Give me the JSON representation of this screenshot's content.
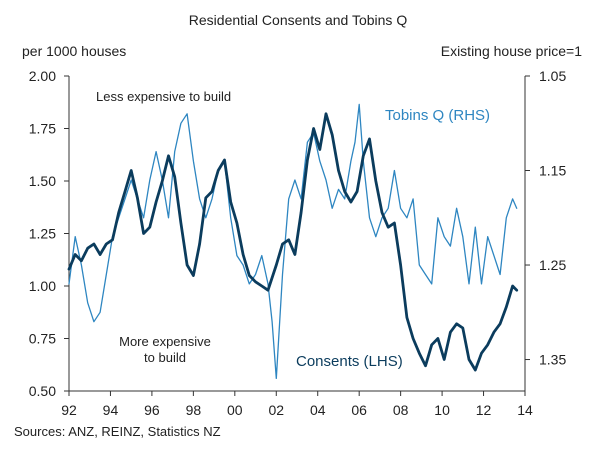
{
  "chart_data": {
    "type": "line",
    "title": "Residential Consents and Tobins Q",
    "left_axis_label": "per 1000 houses",
    "right_axis_label": "Existing house price=1",
    "source": "Sources: ANZ, REINZ, Statistics NZ",
    "annotations": {
      "top": "Less expensive to build",
      "bottom_line1": "More expensive",
      "bottom_line2": "to build"
    },
    "x_ticks": [
      "92",
      "94",
      "96",
      "98",
      "00",
      "02",
      "04",
      "06",
      "08",
      "10",
      "12",
      "14"
    ],
    "x_tick_values": [
      1992,
      1994,
      1996,
      1998,
      2000,
      2002,
      2004,
      2006,
      2008,
      2010,
      2012,
      2014
    ],
    "xlim": [
      1992,
      2014
    ],
    "y_left_ticks": [
      "0.50",
      "0.75",
      "1.00",
      "1.25",
      "1.50",
      "1.75",
      "2.00"
    ],
    "y_left_tick_values": [
      0.5,
      0.75,
      1.0,
      1.25,
      1.5,
      1.75,
      2.0
    ],
    "ylim_left": [
      0.5,
      2.0
    ],
    "y_right_ticks": [
      "1.05",
      "1.15",
      "1.25",
      "1.35"
    ],
    "y_right_tick_values": [
      1.05,
      1.15,
      1.25,
      1.35
    ],
    "ylim_right_inverted": [
      1.05,
      1.3833
    ],
    "grid": false,
    "series": [
      {
        "name": "Tobins Q (RHS)",
        "axis": "right",
        "inverted": true,
        "color": "#2E86C1",
        "x": [
          1992.0,
          1992.3,
          1992.6,
          1992.9,
          1993.2,
          1993.5,
          1993.8,
          1994.1,
          1994.4,
          1994.7,
          1995.0,
          1995.3,
          1995.6,
          1995.9,
          1996.2,
          1996.5,
          1996.8,
          1997.1,
          1997.4,
          1997.7,
          1998.0,
          1998.3,
          1998.6,
          1998.9,
          1999.2,
          1999.5,
          1999.8,
          2000.1,
          2000.4,
          2000.7,
          2001.0,
          2001.3,
          2001.6,
          2001.8,
          2002.0,
          2002.3,
          2002.6,
          2002.9,
          2003.2,
          2003.5,
          2003.8,
          2004.1,
          2004.4,
          2004.7,
          2005.0,
          2005.3,
          2005.6,
          2005.8,
          2006.0,
          2006.2,
          2006.5,
          2006.8,
          2007.1,
          2007.4,
          2007.7,
          2008.0,
          2008.3,
          2008.6,
          2008.9,
          2009.2,
          2009.5,
          2009.8,
          2010.1,
          2010.4,
          2010.7,
          2011.0,
          2011.3,
          2011.6,
          2011.9,
          2012.2,
          2012.5,
          2012.8,
          2013.1,
          2013.4,
          2013.6
        ],
        "values": [
          1.27,
          1.22,
          1.25,
          1.29,
          1.31,
          1.3,
          1.26,
          1.22,
          1.2,
          1.18,
          1.16,
          1.18,
          1.2,
          1.16,
          1.13,
          1.16,
          1.2,
          1.13,
          1.1,
          1.09,
          1.14,
          1.18,
          1.2,
          1.18,
          1.15,
          1.14,
          1.2,
          1.24,
          1.25,
          1.27,
          1.26,
          1.24,
          1.27,
          1.31,
          1.37,
          1.26,
          1.18,
          1.16,
          1.18,
          1.12,
          1.11,
          1.14,
          1.16,
          1.19,
          1.17,
          1.18,
          1.14,
          1.12,
          1.08,
          1.14,
          1.2,
          1.22,
          1.2,
          1.19,
          1.15,
          1.19,
          1.2,
          1.18,
          1.25,
          1.26,
          1.27,
          1.2,
          1.22,
          1.23,
          1.19,
          1.22,
          1.27,
          1.21,
          1.27,
          1.22,
          1.24,
          1.26,
          1.2,
          1.18,
          1.19
        ]
      },
      {
        "name": "Consents (LHS)",
        "axis": "left",
        "color": "#0B3C5D",
        "x": [
          1992.0,
          1992.3,
          1992.6,
          1992.9,
          1993.2,
          1993.5,
          1993.8,
          1994.1,
          1994.4,
          1994.7,
          1995.0,
          1995.3,
          1995.6,
          1995.9,
          1996.2,
          1996.5,
          1996.8,
          1997.1,
          1997.4,
          1997.7,
          1998.0,
          1998.3,
          1998.6,
          1998.9,
          1999.2,
          1999.5,
          1999.8,
          2000.1,
          2000.4,
          2000.7,
          2001.0,
          2001.3,
          2001.6,
          2002.0,
          2002.3,
          2002.6,
          2002.9,
          2003.2,
          2003.5,
          2003.8,
          2004.1,
          2004.4,
          2004.7,
          2005.0,
          2005.3,
          2005.6,
          2005.9,
          2006.2,
          2006.5,
          2006.8,
          2007.1,
          2007.4,
          2007.7,
          2008.0,
          2008.3,
          2008.6,
          2008.9,
          2009.2,
          2009.5,
          2009.8,
          2010.1,
          2010.4,
          2010.7,
          2011.0,
          2011.3,
          2011.6,
          2011.9,
          2012.2,
          2012.5,
          2012.8,
          2013.1,
          2013.4,
          2013.6
        ],
        "values": [
          1.08,
          1.15,
          1.12,
          1.18,
          1.2,
          1.15,
          1.2,
          1.22,
          1.35,
          1.45,
          1.55,
          1.42,
          1.25,
          1.28,
          1.4,
          1.5,
          1.62,
          1.52,
          1.3,
          1.1,
          1.05,
          1.2,
          1.42,
          1.45,
          1.55,
          1.6,
          1.4,
          1.3,
          1.15,
          1.05,
          1.02,
          1.0,
          0.98,
          1.1,
          1.2,
          1.22,
          1.15,
          1.35,
          1.6,
          1.75,
          1.65,
          1.82,
          1.72,
          1.55,
          1.45,
          1.4,
          1.45,
          1.62,
          1.7,
          1.5,
          1.35,
          1.28,
          1.3,
          1.1,
          0.85,
          0.75,
          0.68,
          0.62,
          0.72,
          0.75,
          0.65,
          0.78,
          0.82,
          0.8,
          0.65,
          0.6,
          0.68,
          0.72,
          0.78,
          0.82,
          0.9,
          1.0,
          0.98
        ]
      }
    ]
  }
}
